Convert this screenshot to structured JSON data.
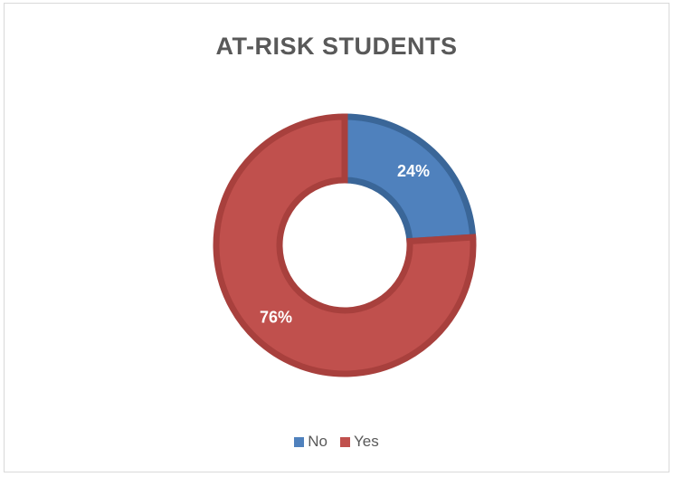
{
  "chart_data": {
    "type": "pie",
    "title": "AT-RISK STUDENTS",
    "categories": [
      "No",
      "Yes"
    ],
    "values": [
      24,
      76
    ],
    "value_labels": [
      "24%",
      "76%"
    ],
    "colors": [
      "#4f81bd",
      "#c0504d"
    ],
    "border_colors": [
      "#3a6698",
      "#a8403d"
    ],
    "style": "donut",
    "legend_position": "bottom"
  }
}
